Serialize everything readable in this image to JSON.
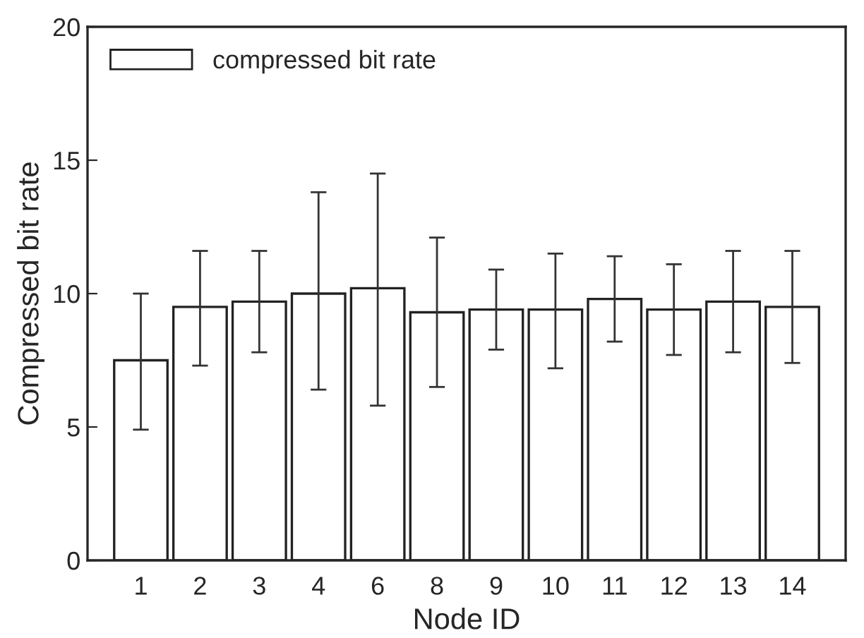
{
  "chart_data": {
    "type": "bar",
    "xlabel": "Node ID",
    "ylabel": "Compressed bit rate",
    "categories": [
      "1",
      "2",
      "3",
      "4",
      "6",
      "8",
      "9",
      "10",
      "11",
      "12",
      "13",
      "14"
    ],
    "series": [
      {
        "name": "compressed bit rate",
        "color": "#ffffff",
        "values": [
          7.5,
          9.5,
          9.7,
          10.0,
          10.2,
          9.3,
          9.4,
          9.4,
          9.8,
          9.4,
          9.7,
          9.5
        ],
        "errors": [
          [
            4.9,
            10.0
          ],
          [
            7.3,
            11.6
          ],
          [
            7.8,
            11.6
          ],
          [
            6.4,
            13.8
          ],
          [
            5.8,
            14.5
          ],
          [
            6.5,
            12.1
          ],
          [
            7.9,
            10.9
          ],
          [
            7.2,
            11.5
          ],
          [
            8.2,
            11.4
          ],
          [
            7.7,
            11.1
          ],
          [
            7.8,
            11.6
          ],
          [
            7.4,
            11.6
          ]
        ]
      }
    ],
    "ylim": [
      0,
      20
    ],
    "yticks": [
      0,
      5,
      10,
      15,
      20
    ],
    "grid": false,
    "legend": "top left"
  }
}
